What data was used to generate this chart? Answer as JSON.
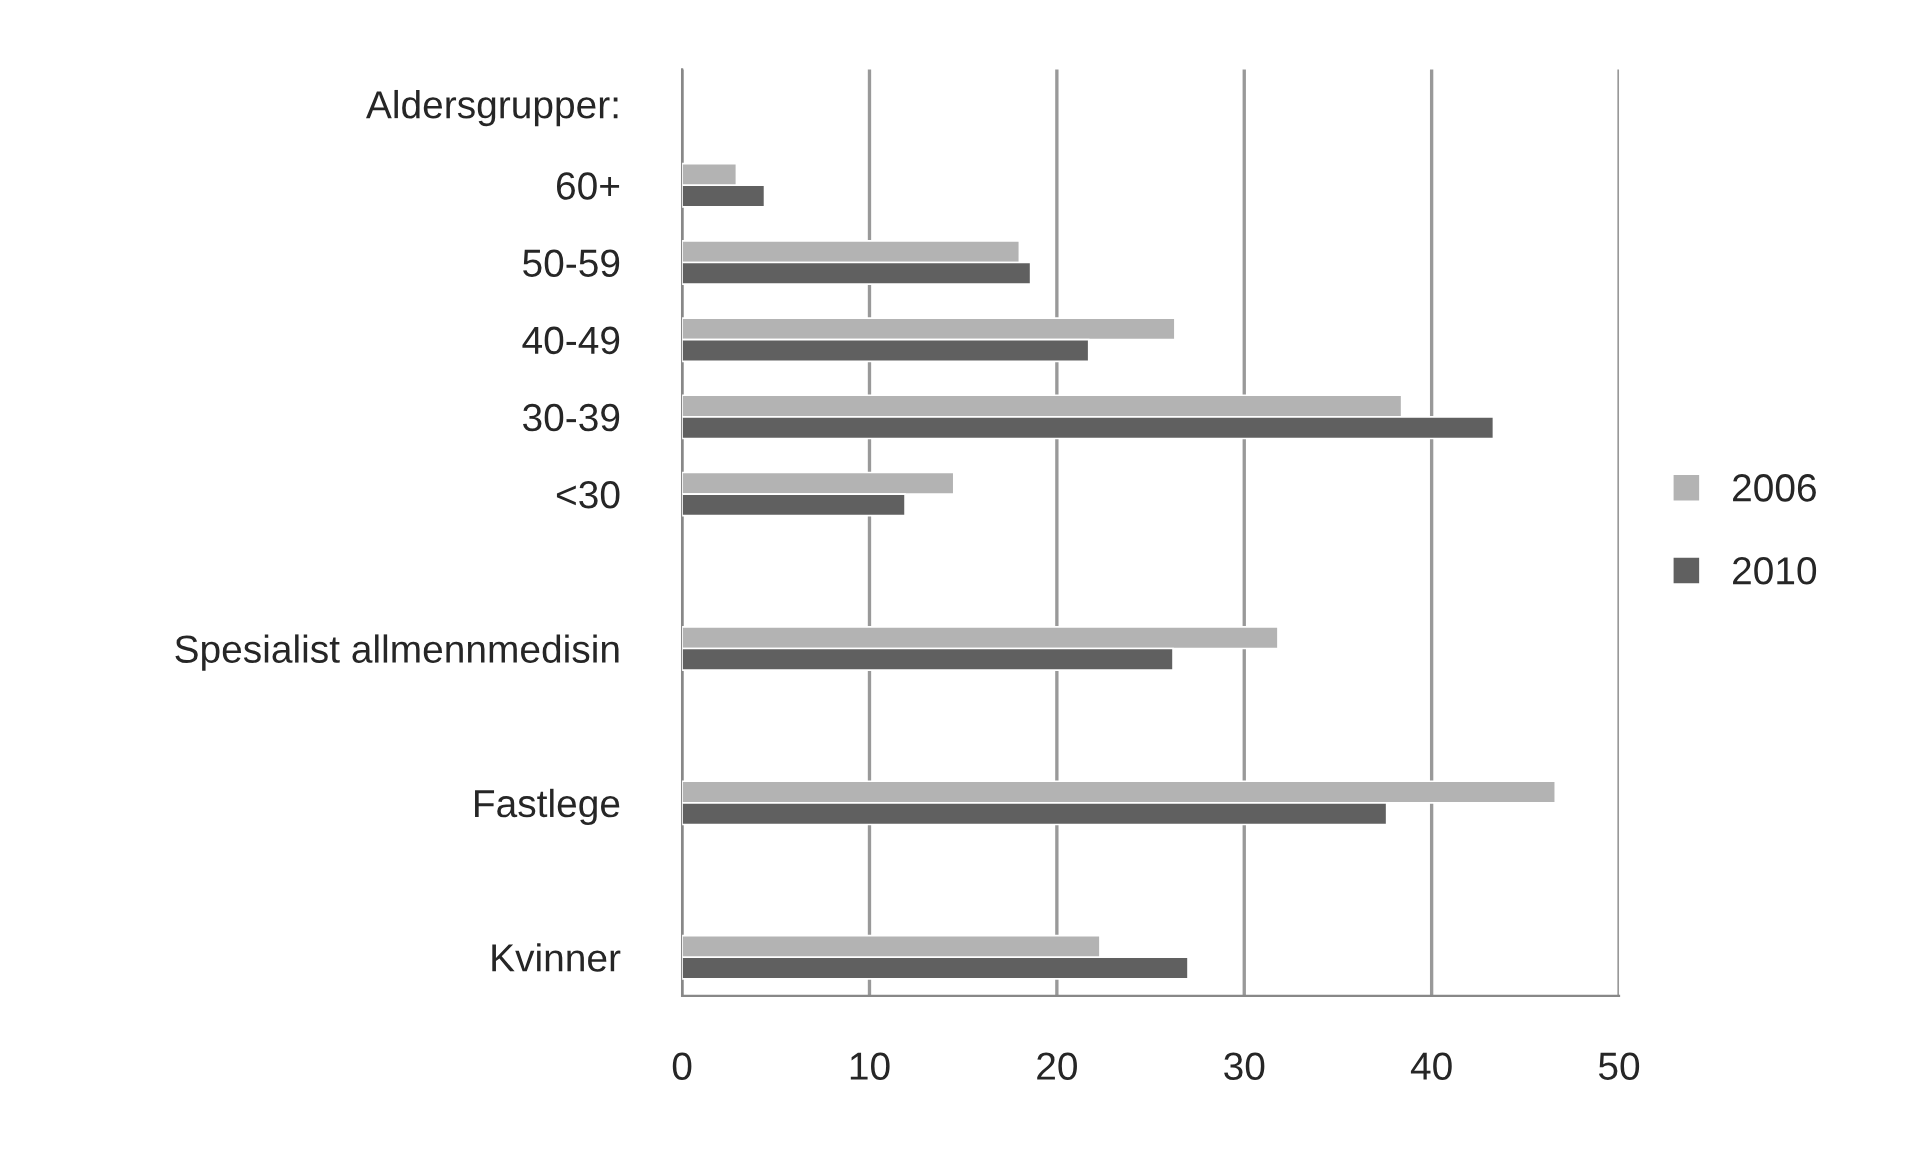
{
  "chart_data": {
    "type": "bar",
    "orientation": "horizontal",
    "annotations": [
      "Aldersgrupper:"
    ],
    "categories": [
      null,
      "60+",
      "50-59",
      "40-49",
      "30-39",
      "<30",
      null,
      "Spesialist allmennmedisin",
      null,
      "Fastlege",
      null,
      "Kvinner"
    ],
    "series": [
      {
        "name": "2006",
        "color": "#b3b3b3",
        "values": [
          null,
          2.9,
          18.0,
          26.3,
          38.4,
          14.5,
          null,
          31.8,
          null,
          46.6,
          null,
          22.3
        ]
      },
      {
        "name": "2010",
        "color": "#606060",
        "values": [
          null,
          4.4,
          18.6,
          21.7,
          43.3,
          11.9,
          null,
          26.2,
          null,
          37.6,
          null,
          27.0
        ]
      }
    ],
    "xlim": [
      0,
      50
    ],
    "xticks": [
      0,
      10,
      20,
      30,
      40,
      50
    ],
    "grid": "x",
    "legend": "right"
  }
}
